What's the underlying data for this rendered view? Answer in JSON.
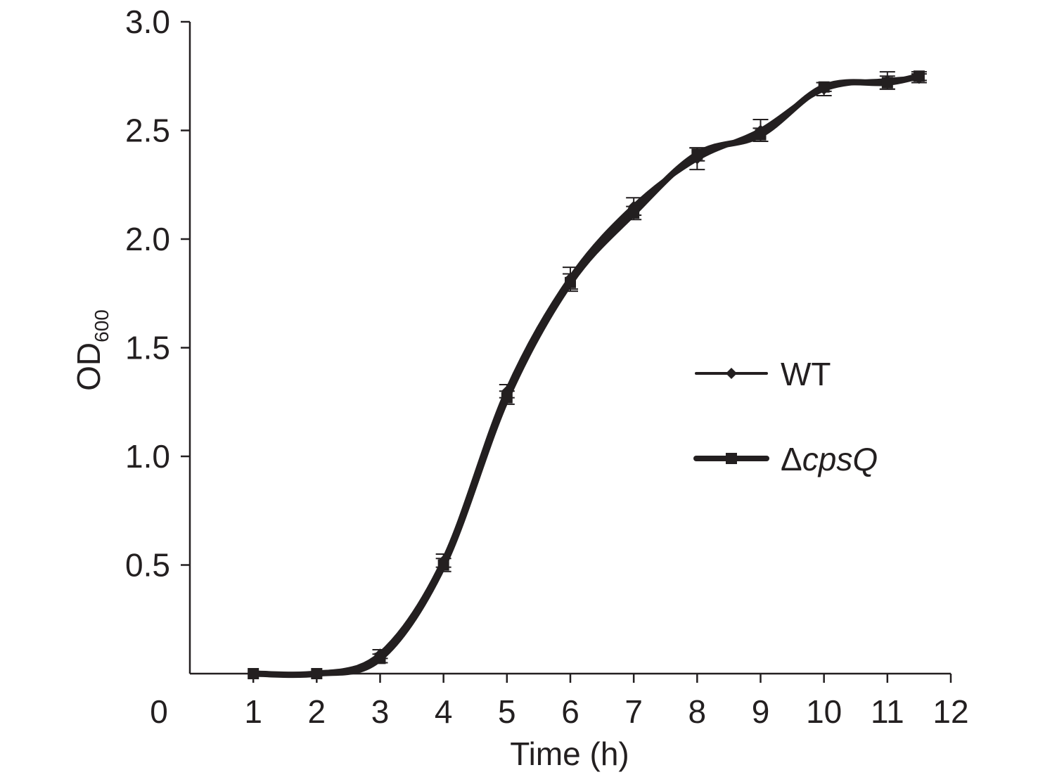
{
  "chart_data": {
    "type": "line",
    "title": "",
    "xlabel": "Time (h)",
    "ylabel": {
      "main": "OD",
      "sub": "600"
    },
    "xlim": [
      0,
      12
    ],
    "ylim": [
      0,
      3.0
    ],
    "x_ticks": [
      0,
      1,
      2,
      3,
      4,
      5,
      6,
      7,
      8,
      9,
      10,
      11,
      12
    ],
    "x_tick_labels": [
      "0",
      "1",
      "2",
      "3",
      "4",
      "5",
      "6",
      "7",
      "8",
      "9",
      "10",
      "11",
      "12"
    ],
    "y_ticks": [
      0.5,
      1.0,
      1.5,
      2.0,
      2.5,
      3.0
    ],
    "y_tick_labels": [
      "0.5",
      "1.0",
      "1.5",
      "2.0",
      "2.5",
      "3.0"
    ],
    "grid": false,
    "legend_position": "right",
    "line_color": "#231f20",
    "series": [
      {
        "name": "WT",
        "marker": "diamond",
        "x": [
          1,
          2,
          3,
          4,
          5,
          6,
          7,
          8,
          9,
          10,
          11,
          11.5
        ],
        "values": [
          0.0,
          0.0,
          0.09,
          0.52,
          1.3,
          1.82,
          2.15,
          2.37,
          2.5,
          2.69,
          2.73,
          2.74
        ],
        "errors": [
          0.0,
          0.0,
          0.02,
          0.03,
          0.03,
          0.05,
          0.04,
          0.05,
          0.05,
          0.03,
          0.04,
          0.02
        ]
      },
      {
        "name": "ΔcpsQ",
        "marker": "square",
        "x": [
          1,
          2,
          3,
          4,
          5,
          6,
          7,
          8,
          9,
          10,
          11,
          11.5
        ],
        "values": [
          0.0,
          0.0,
          0.07,
          0.5,
          1.27,
          1.8,
          2.12,
          2.39,
          2.48,
          2.7,
          2.72,
          2.75
        ],
        "errors": [
          0.0,
          0.0,
          0.02,
          0.03,
          0.03,
          0.04,
          0.03,
          0.03,
          0.03,
          0.02,
          0.03,
          0.02
        ]
      }
    ]
  }
}
